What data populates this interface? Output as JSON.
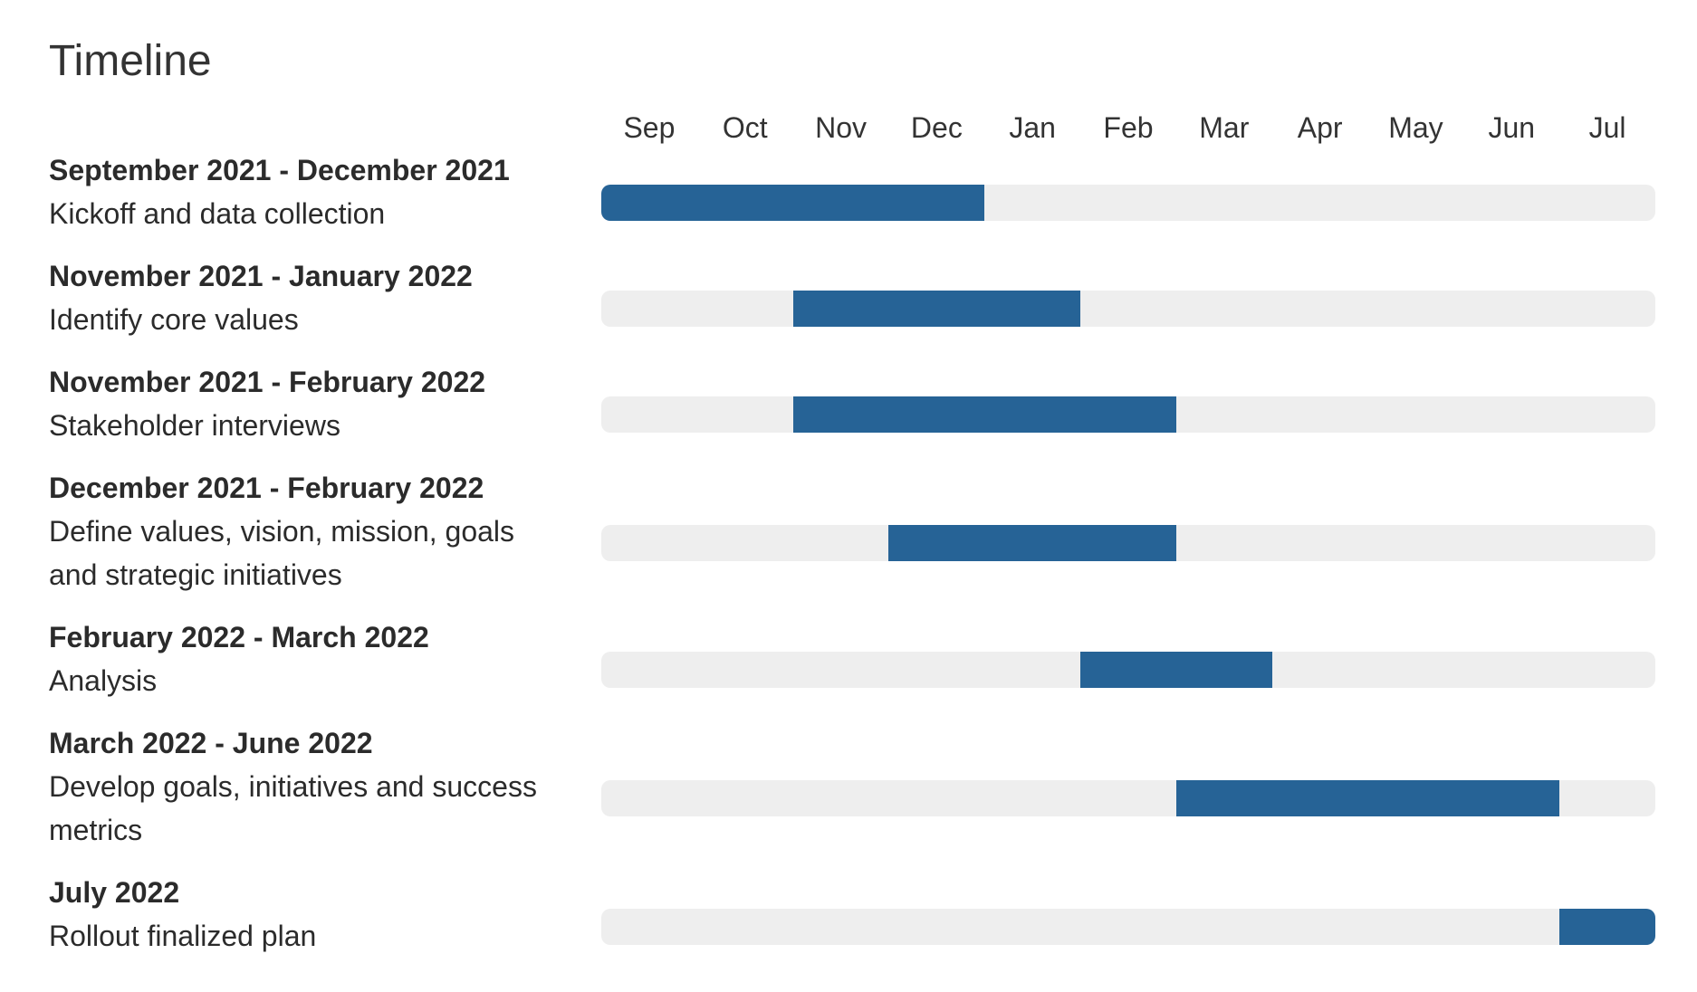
{
  "title": "Timeline",
  "colors": {
    "bar": "#266396",
    "track": "#eeeeee",
    "text": "#2b2b2b"
  },
  "chart_data": {
    "type": "gantt",
    "months": [
      "Sep",
      "Oct",
      "Nov",
      "Dec",
      "Jan",
      "Feb",
      "Mar",
      "Apr",
      "May",
      "Jun",
      "Jul"
    ],
    "tasks": [
      {
        "date_range": "September 2021 - December 2021",
        "description": "Kickoff and data collection",
        "start_month": "Sep",
        "end_month": "Dec"
      },
      {
        "date_range": "November 2021 - January 2022",
        "description": "Identify core values",
        "start_month": "Nov",
        "end_month": "Jan"
      },
      {
        "date_range": "November 2021 - February 2022",
        "description": "Stakeholder interviews",
        "start_month": "Nov",
        "end_month": "Feb"
      },
      {
        "date_range": "December 2021 - February 2022",
        "description": "Define values, vision, mission, goals and strategic initiatives",
        "start_month": "Dec",
        "end_month": "Feb"
      },
      {
        "date_range": "February 2022 - March 2022",
        "description": "Analysis",
        "start_month": "Feb",
        "end_month": "Mar"
      },
      {
        "date_range": "March 2022 - June 2022",
        "description": "Develop goals, initiatives and success metrics",
        "start_month": "Mar",
        "end_month": "Jun"
      },
      {
        "date_range": "July 2022",
        "description": "Rollout finalized plan",
        "start_month": "Jul",
        "end_month": "Jul"
      }
    ]
  }
}
